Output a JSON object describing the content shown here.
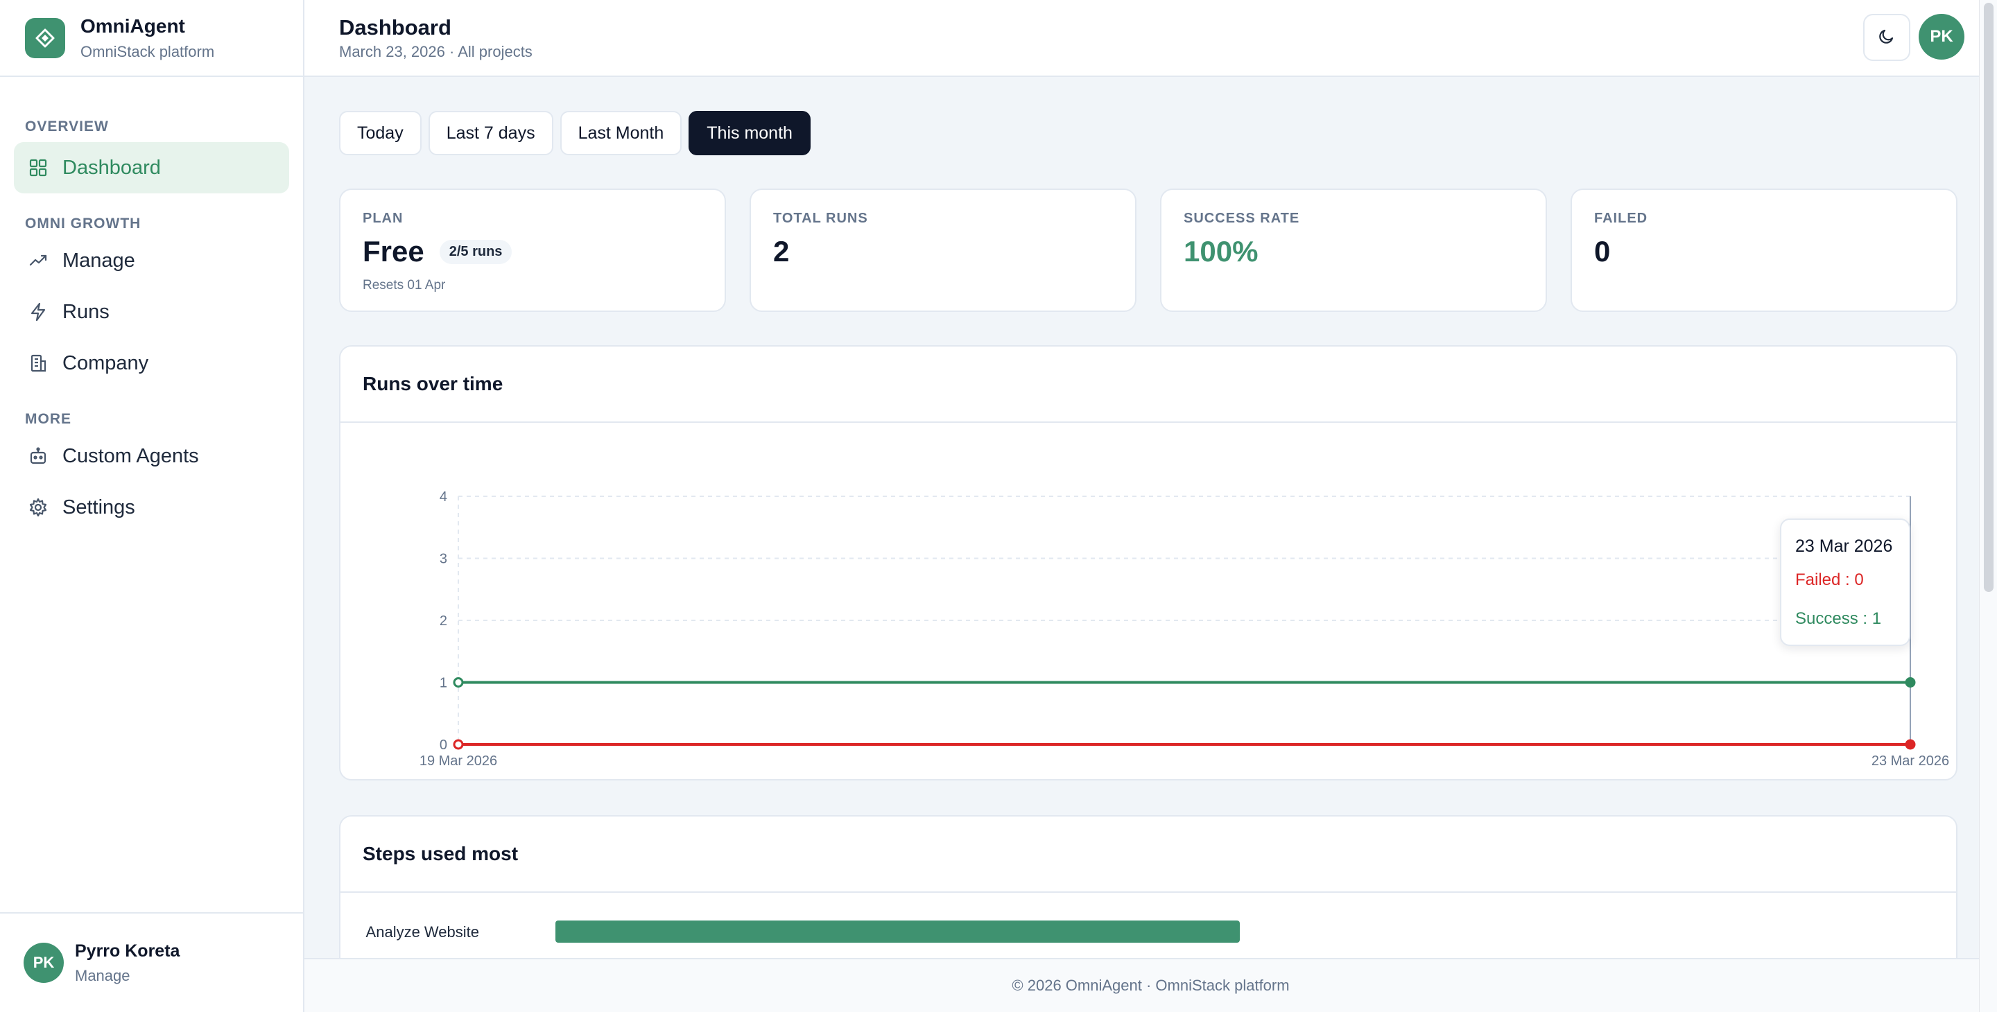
{
  "brand": {
    "name": "OmniAgent",
    "subtitle": "OmniStack platform"
  },
  "sidebar": {
    "sections": [
      {
        "title": "OVERVIEW",
        "items": [
          {
            "label": "Dashboard",
            "icon": "grid-icon",
            "active": true
          }
        ]
      },
      {
        "title": "OMNI GROWTH",
        "items": [
          {
            "label": "Manage",
            "icon": "trending-up-icon"
          },
          {
            "label": "Runs",
            "icon": "lightning-icon"
          },
          {
            "label": "Company",
            "icon": "building-icon"
          }
        ]
      },
      {
        "title": "MORE",
        "items": [
          {
            "label": "Custom Agents",
            "icon": "bot-icon"
          },
          {
            "label": "Settings",
            "icon": "gear-icon"
          }
        ]
      }
    ],
    "user": {
      "initials": "PK",
      "name": "Pyrro Koreta",
      "role": "Manage"
    }
  },
  "header": {
    "title": "Dashboard",
    "subtitle": "March 23, 2026 · All projects",
    "avatar_initials": "PK"
  },
  "filters": {
    "items": [
      "Today",
      "Last 7 days",
      "Last Month",
      "This month"
    ],
    "active": "This month"
  },
  "stats": {
    "plan": {
      "label": "PLAN",
      "value": "Free",
      "badge": "2/5 runs",
      "note": "Resets 01 Apr"
    },
    "total_runs": {
      "label": "TOTAL RUNS",
      "value": "2"
    },
    "success_rate": {
      "label": "SUCCESS RATE",
      "value": "100%"
    },
    "failed": {
      "label": "FAILED",
      "value": "0"
    }
  },
  "runs_chart": {
    "title": "Runs over time",
    "tooltip": {
      "date": "23 Mar 2026",
      "failed": "Failed : 0",
      "success": "Success : 1"
    }
  },
  "steps_chart": {
    "title": "Steps used most"
  },
  "footer": {
    "text": "© 2026 OmniAgent · OmniStack platform"
  },
  "colors": {
    "accent": "#3f9270",
    "success": "#2f8a5f",
    "failed": "#dc2626",
    "dark": "#0f172a"
  },
  "chart_data": [
    {
      "type": "line",
      "title": "Runs over time",
      "x": [
        "19 Mar 2026",
        "23 Mar 2026"
      ],
      "yticks": [
        0,
        1,
        2,
        3,
        4
      ],
      "ylim": [
        0,
        4
      ],
      "grid": true,
      "series": [
        {
          "name": "Success",
          "values": [
            1,
            1
          ],
          "color": "#2f8a5f"
        },
        {
          "name": "Failed",
          "values": [
            0,
            0
          ],
          "color": "#dc2626"
        }
      ]
    },
    {
      "type": "bar",
      "title": "Steps used most",
      "categories": [
        "Analyze Website"
      ],
      "values": [
        1
      ]
    }
  ]
}
